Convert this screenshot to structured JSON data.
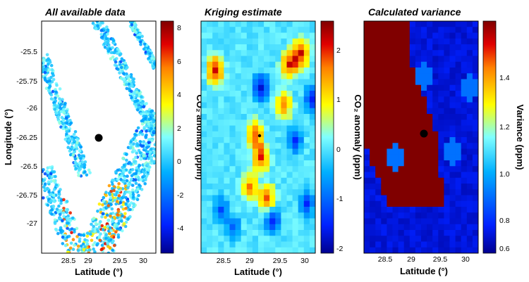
{
  "panels": [
    {
      "title": "All available data",
      "xlabel": "Latitude (°)",
      "ylabel": "Longitude (°)",
      "x_ticks": [
        "28.5",
        "29",
        "29.5",
        "30"
      ],
      "y_ticks": [
        "-25.5",
        "-25.75",
        "-26",
        "-26.25",
        "-26.5",
        "-26.75",
        "-27"
      ],
      "colorbar_label": "CO₂ anomaly (ppm)",
      "colorbar_ticks": [
        "8",
        "6",
        "4",
        "2",
        "0",
        "-2",
        "-4"
      ],
      "colorbar_range": [
        -5.5,
        8.5
      ]
    },
    {
      "title": "Kriging estimate",
      "xlabel": "Latitude (°)",
      "x_ticks": [
        "28.5",
        "29",
        "29.5",
        "30"
      ],
      "colorbar_label": "CO₂ anomaly (ppm)",
      "colorbar_ticks": [
        "2",
        "1",
        "0",
        "-1",
        "-2"
      ],
      "colorbar_range": [
        -2.1,
        2.6
      ]
    },
    {
      "title": "Calculated variance",
      "xlabel": "Latitude (°)",
      "x_ticks": [
        "28.5",
        "29",
        "29.5",
        "30"
      ],
      "colorbar_label": "Variance (ppm)",
      "colorbar_ticks": [
        "1.4",
        "1.2",
        "1.0",
        "0.8",
        "0.6"
      ],
      "colorbar_range": [
        0.56,
        1.56
      ]
    }
  ],
  "colormap": [
    "#00008f",
    "#0020ff",
    "#00b0ff",
    "#7fffff",
    "#ffff00",
    "#ff8000",
    "#e00000",
    "#800000"
  ]
}
